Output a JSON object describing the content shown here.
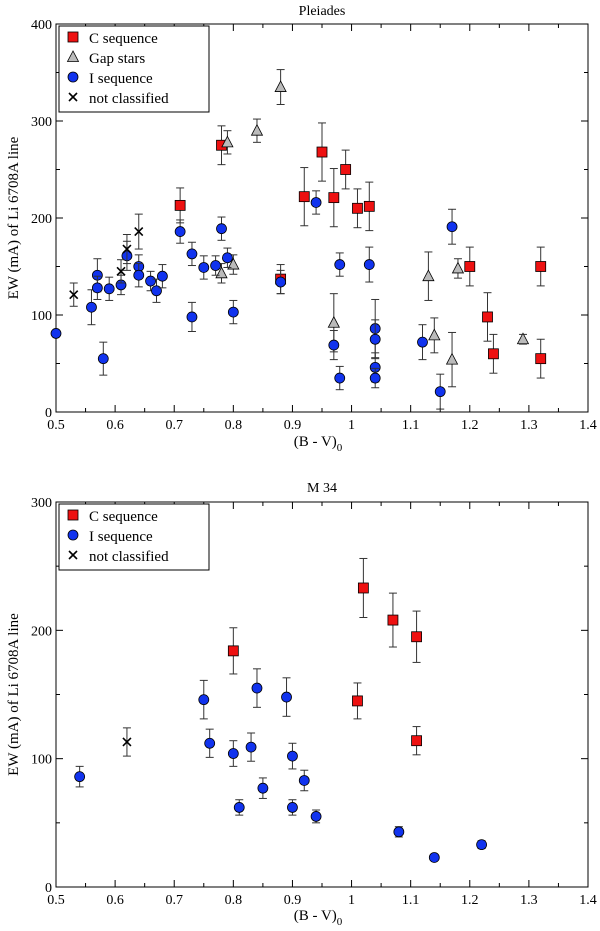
{
  "chart_data": [
    {
      "type": "scatter",
      "title": "Pleiades",
      "xlabel": "(B - V)",
      "xlabel_sub": "0",
      "ylabel": "EW (mA) of Li 6708A line",
      "xlim": [
        0.5,
        1.4
      ],
      "ylim": [
        0,
        400
      ],
      "xticks": [
        "0.5",
        "0.6",
        "0.7",
        "0.8",
        "0.9",
        "1",
        "1.1",
        "1.2",
        "1.3",
        "1.4"
      ],
      "xtick_values": [
        0.5,
        0.6,
        0.7,
        0.8,
        0.9,
        1.0,
        1.1,
        1.2,
        1.3,
        1.4
      ],
      "yticks": [
        "0",
        "100",
        "200",
        "300",
        "400"
      ],
      "ytick_values": [
        0,
        100,
        200,
        300,
        400
      ],
      "legend_position": "top-left",
      "series": [
        {
          "name": "C sequence",
          "marker": "square",
          "color": "#ee1111",
          "points": [
            {
              "x": 0.71,
              "y": 213,
              "err": 18
            },
            {
              "x": 0.78,
              "y": 275,
              "err": 20
            },
            {
              "x": 0.88,
              "y": 137,
              "err": 15
            },
            {
              "x": 0.92,
              "y": 222,
              "err": 30
            },
            {
              "x": 0.95,
              "y": 268,
              "err": 30
            },
            {
              "x": 0.97,
              "y": 221,
              "err": 30
            },
            {
              "x": 0.99,
              "y": 250,
              "err": 20
            },
            {
              "x": 1.01,
              "y": 210,
              "err": 20
            },
            {
              "x": 1.03,
              "y": 212,
              "err": 25
            },
            {
              "x": 1.2,
              "y": 150,
              "err": 20
            },
            {
              "x": 1.23,
              "y": 98,
              "err": 25
            },
            {
              "x": 1.24,
              "y": 60,
              "err": 20
            },
            {
              "x": 1.32,
              "y": 150,
              "err": 20
            },
            {
              "x": 1.32,
              "y": 55,
              "err": 20
            }
          ]
        },
        {
          "name": "Gap stars",
          "marker": "triangle",
          "color": "#bbbbbb",
          "points": [
            {
              "x": 0.78,
              "y": 143,
              "err": 10
            },
            {
              "x": 0.79,
              "y": 278,
              "err": 12
            },
            {
              "x": 0.8,
              "y": 152,
              "err": 10
            },
            {
              "x": 0.84,
              "y": 290,
              "err": 12
            },
            {
              "x": 0.88,
              "y": 335,
              "err": 18
            },
            {
              "x": 0.97,
              "y": 92,
              "err": 30
            },
            {
              "x": 1.13,
              "y": 140,
              "err": 25
            },
            {
              "x": 1.14,
              "y": 79,
              "err": 18
            },
            {
              "x": 1.17,
              "y": 54,
              "err": 28
            },
            {
              "x": 1.18,
              "y": 148,
              "err": 10
            },
            {
              "x": 1.29,
              "y": 75,
              "err": 5
            }
          ]
        },
        {
          "name": "I sequence",
          "marker": "circle",
          "color": "#1133ee",
          "points": [
            {
              "x": 0.5,
              "y": 81,
              "err": 0
            },
            {
              "x": 0.56,
              "y": 108,
              "err": 18
            },
            {
              "x": 0.57,
              "y": 141,
              "err": 17
            },
            {
              "x": 0.57,
              "y": 128,
              "err": 12
            },
            {
              "x": 0.58,
              "y": 55,
              "err": 17
            },
            {
              "x": 0.59,
              "y": 127,
              "err": 12
            },
            {
              "x": 0.61,
              "y": 131,
              "err": 10
            },
            {
              "x": 0.62,
              "y": 161,
              "err": 15
            },
            {
              "x": 0.64,
              "y": 150,
              "err": 12
            },
            {
              "x": 0.64,
              "y": 141,
              "err": 12
            },
            {
              "x": 0.66,
              "y": 135,
              "err": 10
            },
            {
              "x": 0.67,
              "y": 125,
              "err": 12
            },
            {
              "x": 0.68,
              "y": 140,
              "err": 12
            },
            {
              "x": 0.71,
              "y": 186,
              "err": 12
            },
            {
              "x": 0.73,
              "y": 163,
              "err": 12
            },
            {
              "x": 0.73,
              "y": 98,
              "err": 15
            },
            {
              "x": 0.75,
              "y": 149,
              "err": 12
            },
            {
              "x": 0.77,
              "y": 151,
              "err": 10
            },
            {
              "x": 0.78,
              "y": 189,
              "err": 12
            },
            {
              "x": 0.79,
              "y": 159,
              "err": 10
            },
            {
              "x": 0.8,
              "y": 103,
              "err": 12
            },
            {
              "x": 0.88,
              "y": 134,
              "err": 12
            },
            {
              "x": 0.94,
              "y": 216,
              "err": 12
            },
            {
              "x": 0.97,
              "y": 69,
              "err": 15
            },
            {
              "x": 0.98,
              "y": 152,
              "err": 12
            },
            {
              "x": 0.98,
              "y": 35,
              "err": 12
            },
            {
              "x": 1.03,
              "y": 152,
              "err": 18
            },
            {
              "x": 1.04,
              "y": 86,
              "err": 30
            },
            {
              "x": 1.04,
              "y": 75,
              "err": 20
            },
            {
              "x": 1.04,
              "y": 46,
              "err": 15
            },
            {
              "x": 1.04,
              "y": 35,
              "err": 10
            },
            {
              "x": 1.12,
              "y": 72,
              "err": 18
            },
            {
              "x": 1.15,
              "y": 21,
              "err": 18
            },
            {
              "x": 1.17,
              "y": 191,
              "err": 18
            }
          ]
        },
        {
          "name": "not classified",
          "marker": "x",
          "color": "#000000",
          "points": [
            {
              "x": 0.53,
              "y": 121,
              "err": 12
            },
            {
              "x": 0.61,
              "y": 145,
              "err": 12
            },
            {
              "x": 0.62,
              "y": 168,
              "err": 15
            },
            {
              "x": 0.64,
              "y": 186,
              "err": 18
            }
          ]
        }
      ]
    },
    {
      "type": "scatter",
      "title": "M 34",
      "xlabel": "(B - V)",
      "xlabel_sub": "0",
      "ylabel": "EW (mA) of Li 6708A line",
      "xlim": [
        0.5,
        1.4
      ],
      "ylim": [
        0,
        300
      ],
      "xticks": [
        "0.5",
        "0.6",
        "0.7",
        "0.8",
        "0.9",
        "1",
        "1.1",
        "1.2",
        "1.3",
        "1.4"
      ],
      "xtick_values": [
        0.5,
        0.6,
        0.7,
        0.8,
        0.9,
        1.0,
        1.1,
        1.2,
        1.3,
        1.4
      ],
      "yticks": [
        "0",
        "100",
        "200",
        "300"
      ],
      "ytick_values": [
        0,
        100,
        200,
        300
      ],
      "legend_position": "top-left",
      "series": [
        {
          "name": "C sequence",
          "marker": "square",
          "color": "#ee1111",
          "points": [
            {
              "x": 0.8,
              "y": 184,
              "err": 18
            },
            {
              "x": 1.01,
              "y": 145,
              "err": 14
            },
            {
              "x": 1.02,
              "y": 233,
              "err": 23
            },
            {
              "x": 1.07,
              "y": 208,
              "err": 21
            },
            {
              "x": 1.11,
              "y": 195,
              "err": 20
            },
            {
              "x": 1.11,
              "y": 114,
              "err": 11
            }
          ]
        },
        {
          "name": "I sequence",
          "marker": "circle",
          "color": "#1133ee",
          "points": [
            {
              "x": 0.54,
              "y": 86,
              "err": 8
            },
            {
              "x": 0.75,
              "y": 146,
              "err": 15
            },
            {
              "x": 0.76,
              "y": 112,
              "err": 11
            },
            {
              "x": 0.8,
              "y": 104,
              "err": 10
            },
            {
              "x": 0.81,
              "y": 62,
              "err": 6
            },
            {
              "x": 0.83,
              "y": 109,
              "err": 11
            },
            {
              "x": 0.84,
              "y": 155,
              "err": 15
            },
            {
              "x": 0.85,
              "y": 77,
              "err": 8
            },
            {
              "x": 0.89,
              "y": 148,
              "err": 15
            },
            {
              "x": 0.9,
              "y": 102,
              "err": 10
            },
            {
              "x": 0.9,
              "y": 62,
              "err": 6
            },
            {
              "x": 0.92,
              "y": 83,
              "err": 8
            },
            {
              "x": 0.94,
              "y": 55,
              "err": 5
            },
            {
              "x": 1.08,
              "y": 43,
              "err": 4
            },
            {
              "x": 1.14,
              "y": 23,
              "err": 2
            },
            {
              "x": 1.22,
              "y": 33,
              "err": 3
            }
          ]
        },
        {
          "name": "not classified",
          "marker": "x",
          "color": "#000000",
          "points": [
            {
              "x": 0.62,
              "y": 113,
              "err": 11
            }
          ]
        }
      ]
    }
  ]
}
